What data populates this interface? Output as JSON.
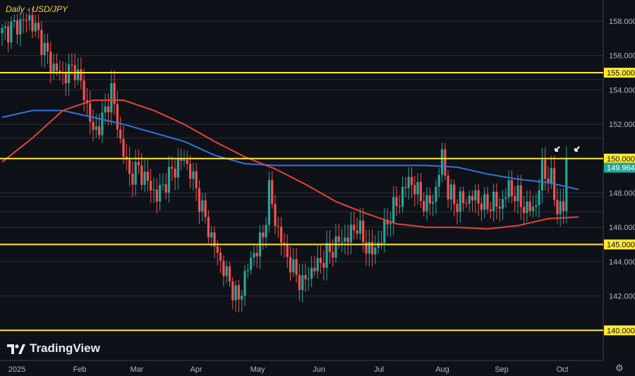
{
  "header": {
    "title": "Daily - USD/JPY"
  },
  "brand": {
    "name": "TradingView"
  },
  "colors": {
    "bg": "#0f1118",
    "grid": "#2a2e3a",
    "up": "#26a69a",
    "down": "#ef5350",
    "ma_blue": "#2f74d8",
    "ma_red": "#e0443c",
    "level": "#ffe83a",
    "axis_text": "#b2b5be"
  },
  "chart_data": {
    "type": "candlestick",
    "title": "Daily - USD/JPY",
    "ylim": [
      139.8,
      159.0
    ],
    "y_ticks": [
      "142.000",
      "144.000",
      "146.000",
      "148.000",
      "152.000",
      "154.000",
      "156.000",
      "158.000"
    ],
    "x_ticks": [
      "2025",
      "Feb",
      "Mar",
      "Apr",
      "May",
      "Jun",
      "Jul",
      "Aug",
      "Sep",
      "Oct"
    ],
    "horizontal_levels": [
      {
        "value": 155.0,
        "label": "155.000"
      },
      {
        "value": 150.0,
        "label": "150.000"
      },
      {
        "value": 145.0,
        "label": "145.000"
      },
      {
        "value": 140.0,
        "label": "140.000"
      }
    ],
    "last_price": {
      "value": 149.964,
      "label": "149.964"
    },
    "moving_averages": [
      {
        "color": "#2f74d8",
        "points": [
          [
            0,
            152.4
          ],
          [
            10,
            152.8
          ],
          [
            20,
            152.8
          ],
          [
            30,
            152.4
          ],
          [
            40,
            152.0
          ],
          [
            50,
            151.5
          ],
          [
            60,
            151.0
          ],
          [
            70,
            150.2
          ],
          [
            80,
            149.7
          ],
          [
            90,
            149.6
          ],
          [
            100,
            149.6
          ],
          [
            110,
            149.6
          ],
          [
            120,
            149.6
          ],
          [
            130,
            149.6
          ],
          [
            140,
            149.6
          ],
          [
            150,
            149.5
          ],
          [
            160,
            149.1
          ],
          [
            170,
            148.8
          ],
          [
            180,
            148.6
          ],
          [
            190,
            148.2
          ]
        ]
      },
      {
        "color": "#e0443c",
        "points": [
          [
            0,
            149.8
          ],
          [
            10,
            151.2
          ],
          [
            20,
            152.8
          ],
          [
            30,
            153.4
          ],
          [
            40,
            153.4
          ],
          [
            50,
            152.8
          ],
          [
            60,
            152.0
          ],
          [
            70,
            151.0
          ],
          [
            80,
            150.1
          ],
          [
            90,
            149.4
          ],
          [
            100,
            148.5
          ],
          [
            110,
            147.5
          ],
          [
            120,
            146.8
          ],
          [
            130,
            146.2
          ],
          [
            140,
            146.0
          ],
          [
            150,
            146.0
          ],
          [
            160,
            145.9
          ],
          [
            170,
            146.1
          ],
          [
            180,
            146.5
          ],
          [
            190,
            146.6
          ]
        ]
      }
    ],
    "candles": {
      "start_date": "2025-01-01",
      "anchors": [
        [
          0,
          157.3
        ],
        [
          5,
          157.8
        ],
        [
          9,
          158.2
        ],
        [
          12,
          157.2
        ],
        [
          16,
          155.5
        ],
        [
          20,
          154.8
        ],
        [
          24,
          155.3
        ],
        [
          27,
          153.8
        ],
        [
          30,
          151.5
        ],
        [
          33,
          152.2
        ],
        [
          36,
          154.0
        ],
        [
          39,
          151.0
        ],
        [
          42,
          149.0
        ],
        [
          45,
          149.4
        ],
        [
          48,
          148.6
        ],
        [
          51,
          147.8
        ],
        [
          54,
          148.7
        ],
        [
          57,
          149.5
        ],
        [
          60,
          150.0
        ],
        [
          63,
          148.8
        ],
        [
          66,
          147.0
        ],
        [
          69,
          145.4
        ],
        [
          72,
          144.0
        ],
        [
          75,
          142.8
        ],
        [
          78,
          141.7
        ],
        [
          80,
          143.2
        ],
        [
          83,
          144.5
        ],
        [
          86,
          145.4
        ],
        [
          88,
          148.2
        ],
        [
          90,
          146.4
        ],
        [
          93,
          144.7
        ],
        [
          96,
          143.5
        ],
        [
          99,
          142.7
        ],
        [
          102,
          143.5
        ],
        [
          105,
          144.0
        ],
        [
          108,
          144.6
        ],
        [
          111,
          145.2
        ],
        [
          114,
          145.4
        ],
        [
          117,
          146.2
        ],
        [
          119,
          145.2
        ],
        [
          122,
          144.5
        ],
        [
          125,
          145.4
        ],
        [
          128,
          146.8
        ],
        [
          131,
          147.6
        ],
        [
          134,
          148.8
        ],
        [
          137,
          148.0
        ],
        [
          140,
          147.2
        ],
        [
          143,
          148.1
        ],
        [
          145,
          150.3
        ],
        [
          147,
          148.0
        ],
        [
          150,
          147.4
        ],
        [
          153,
          147.6
        ],
        [
          156,
          147.8
        ],
        [
          159,
          147.2
        ],
        [
          162,
          147.5
        ],
        [
          164,
          147.2
        ],
        [
          167,
          148.3
        ],
        [
          170,
          147.7
        ],
        [
          173,
          147.0
        ],
        [
          176,
          147.3
        ],
        [
          178,
          149.4
        ],
        [
          181,
          148.7
        ],
        [
          183,
          147.1
        ],
        [
          185,
          147.1
        ],
        [
          186,
          149.96
        ]
      ]
    }
  }
}
